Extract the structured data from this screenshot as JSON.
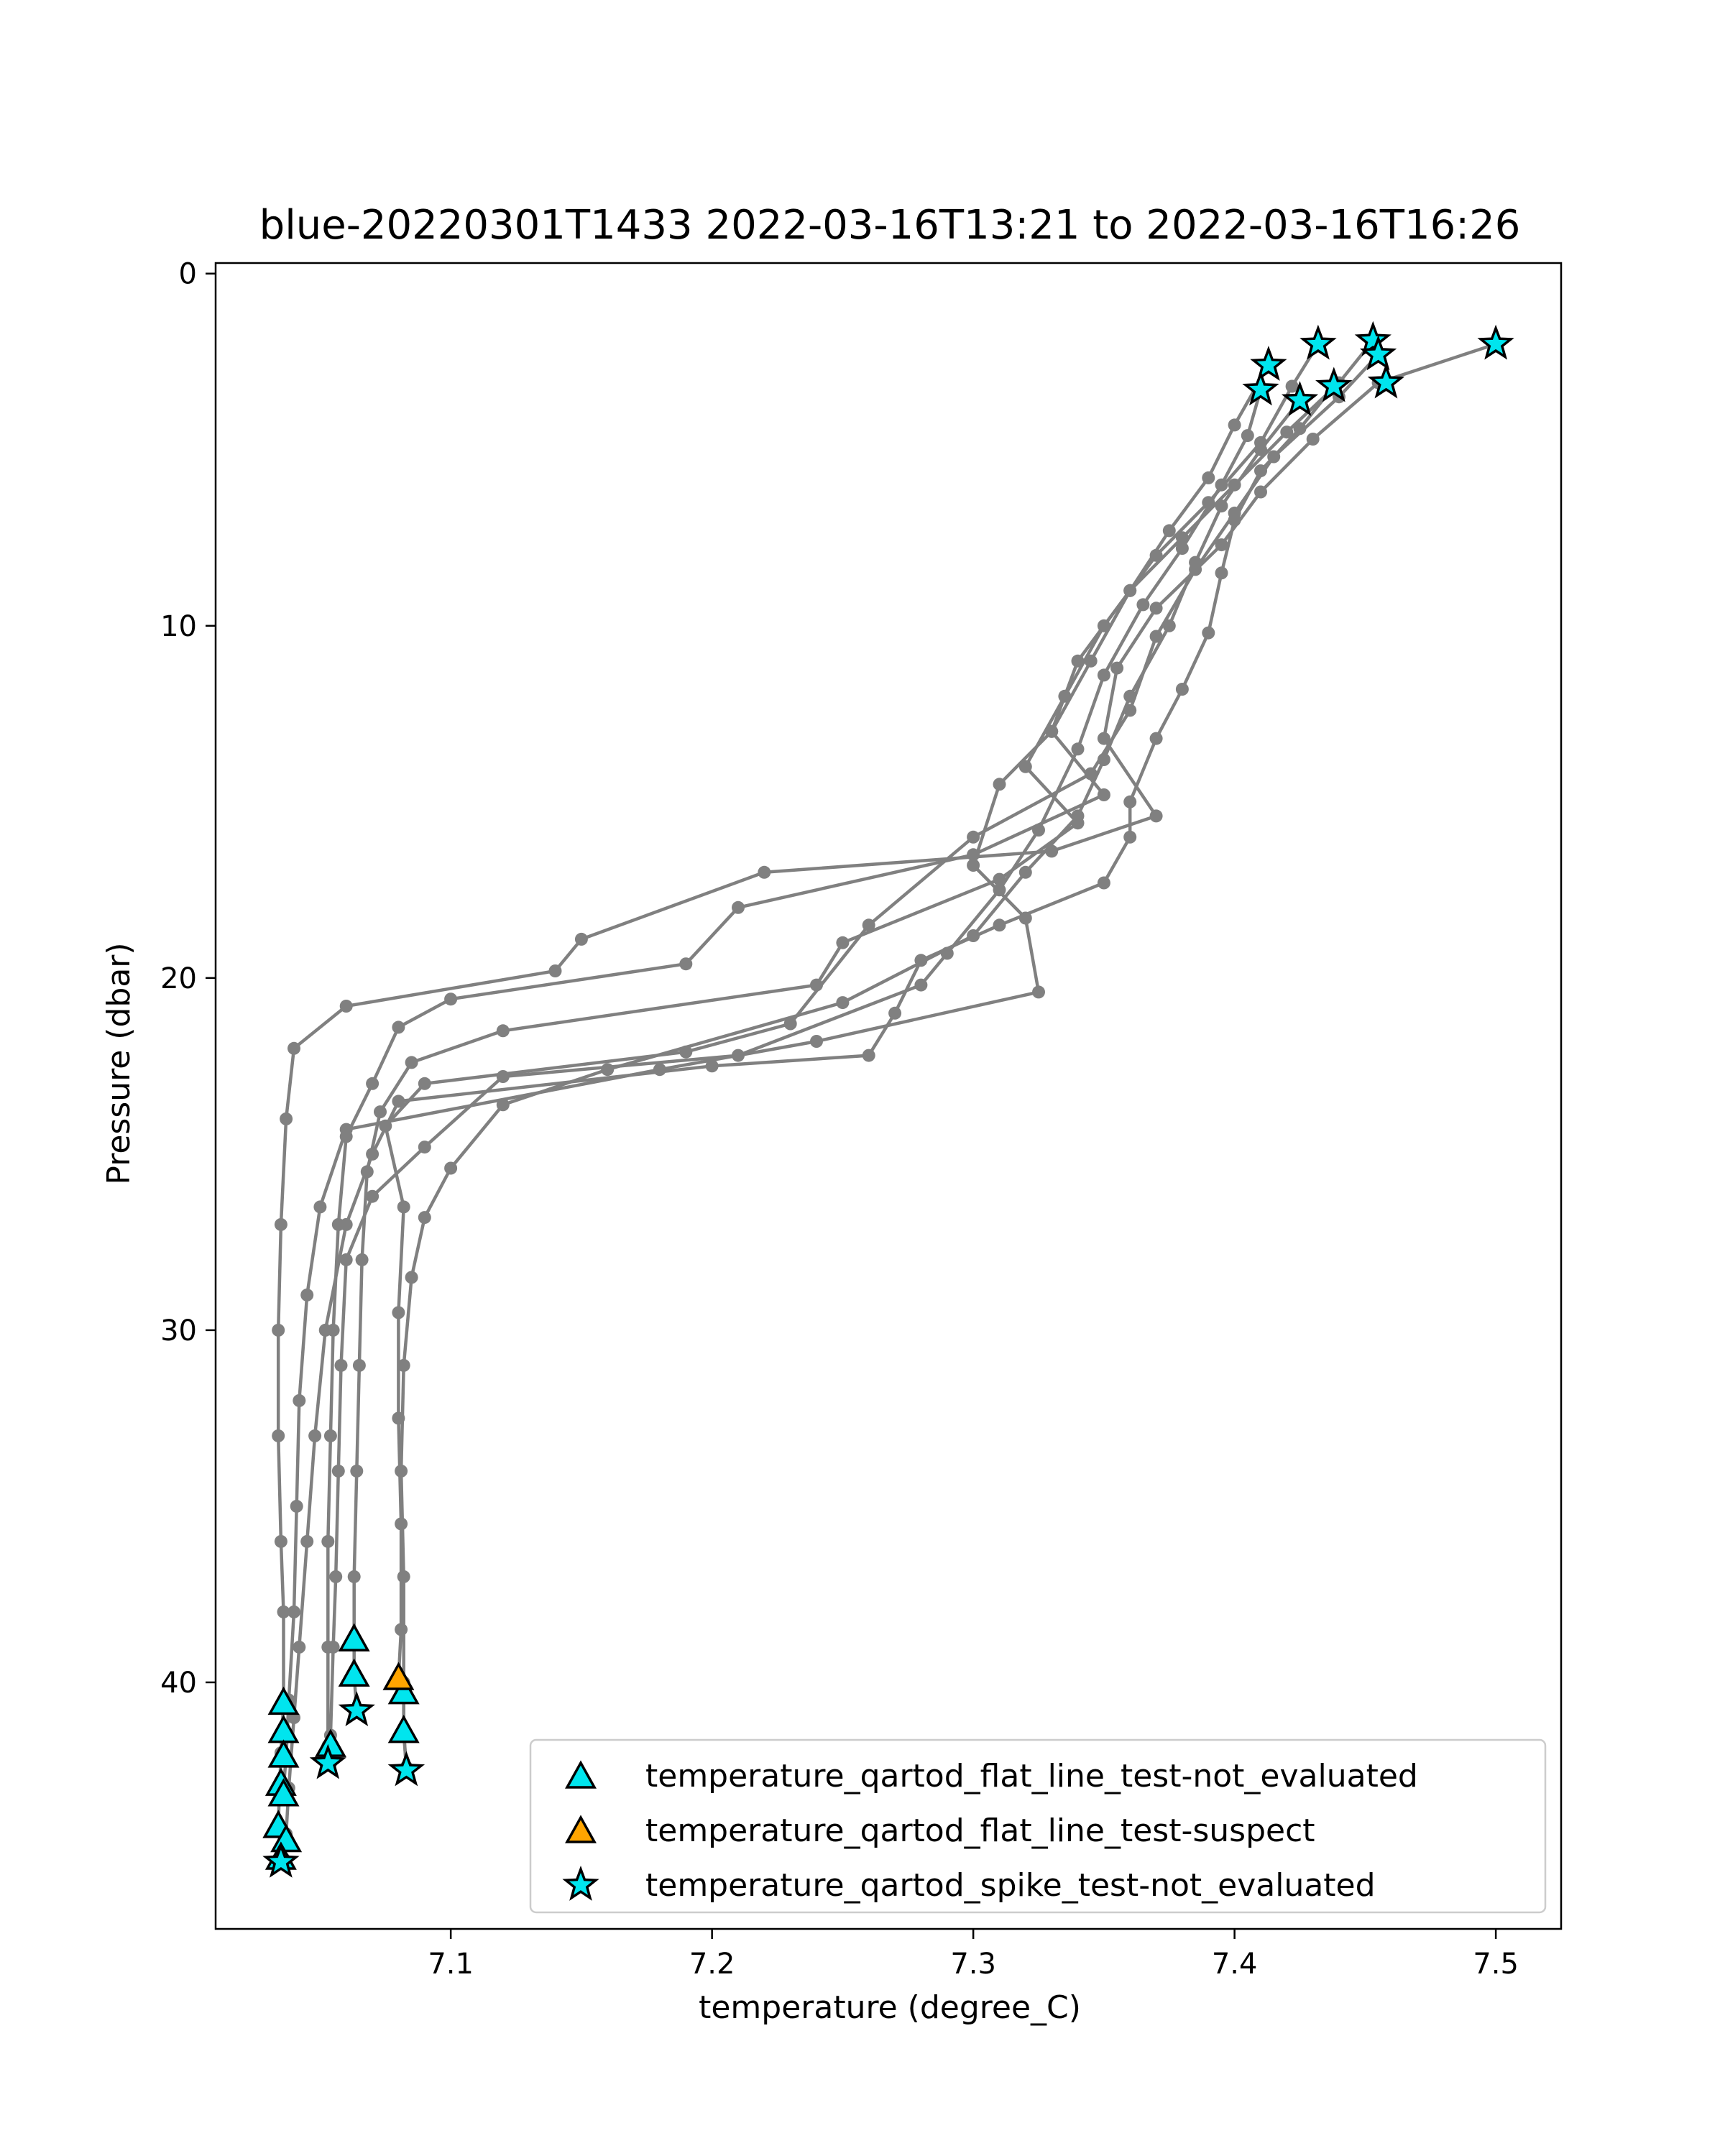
{
  "chart_data": {
    "type": "line",
    "title": "blue-20220301T1433 2022-03-16T13:21 to 2022-03-16T16:26",
    "xlabel": "temperature (degree_C)",
    "ylabel": "Pressure (dbar)",
    "xlim": [
      7.01,
      7.525
    ],
    "ylim": [
      47,
      -0.3
    ],
    "y_inverted": true,
    "xticks": [
      7.1,
      7.2,
      7.3,
      7.4,
      7.5
    ],
    "yticks": [
      0,
      10,
      20,
      30,
      40
    ],
    "xtick_labels": [
      "7.1",
      "7.2",
      "7.3",
      "7.4",
      "7.5"
    ],
    "ytick_labels": [
      "0",
      "10",
      "20",
      "30",
      "40"
    ],
    "grid": false,
    "legend_position": "lower-right",
    "colors": {
      "profile_line": "#808080",
      "not_evaluated": "#00e5ee",
      "suspect": "#ffa500",
      "marker_edge": "#000000"
    },
    "profile_series": [
      {
        "points": [
          [
            7.5,
            2.0
          ],
          [
            7.455,
            3.1
          ],
          [
            7.43,
            4.7
          ],
          [
            7.41,
            6.2
          ],
          [
            7.395,
            7.7
          ],
          [
            7.37,
            9.5
          ],
          [
            7.355,
            11.2
          ],
          [
            7.35,
            13.2
          ],
          [
            7.37,
            15.4
          ],
          [
            7.33,
            16.4
          ],
          [
            7.22,
            17.0
          ],
          [
            7.15,
            18.9
          ],
          [
            7.14,
            19.8
          ],
          [
            7.06,
            20.8
          ],
          [
            7.04,
            22.0
          ],
          [
            7.037,
            24.0
          ],
          [
            7.035,
            27.0
          ],
          [
            7.034,
            30.0
          ],
          [
            7.034,
            33.0
          ],
          [
            7.035,
            36.0
          ],
          [
            7.036,
            38.0
          ],
          [
            7.036,
            40.6
          ],
          [
            7.035,
            42.0
          ],
          [
            7.034,
            44.0
          ],
          [
            7.035,
            45.0
          ]
        ]
      },
      {
        "points": [
          [
            7.453,
            1.9
          ],
          [
            7.44,
            3.1
          ],
          [
            7.42,
            4.5
          ],
          [
            7.4,
            6.0
          ],
          [
            7.38,
            7.5
          ],
          [
            7.36,
            9.0
          ],
          [
            7.34,
            11.0
          ],
          [
            7.33,
            13.0
          ],
          [
            7.35,
            14.8
          ],
          [
            7.3,
            16.5
          ],
          [
            7.21,
            18.0
          ],
          [
            7.19,
            19.6
          ],
          [
            7.1,
            20.6
          ],
          [
            7.08,
            21.4
          ],
          [
            7.07,
            23.0
          ],
          [
            7.06,
            24.5
          ],
          [
            7.057,
            27.0
          ],
          [
            7.055,
            30.0
          ],
          [
            7.054,
            33.0
          ],
          [
            7.053,
            36.0
          ],
          [
            7.053,
            39.0
          ],
          [
            7.053,
            41.8
          ],
          [
            7.054,
            42.3
          ]
        ]
      },
      {
        "points": [
          [
            7.432,
            2.0
          ],
          [
            7.422,
            3.2
          ],
          [
            7.41,
            4.8
          ],
          [
            7.39,
            6.5
          ],
          [
            7.37,
            8.0
          ],
          [
            7.35,
            10.0
          ],
          [
            7.335,
            12.0
          ],
          [
            7.32,
            14.0
          ],
          [
            7.34,
            15.6
          ],
          [
            7.31,
            17.2
          ],
          [
            7.25,
            19.0
          ],
          [
            7.24,
            20.2
          ],
          [
            7.12,
            21.5
          ],
          [
            7.085,
            22.4
          ],
          [
            7.073,
            23.8
          ],
          [
            7.068,
            25.5
          ],
          [
            7.066,
            28.0
          ],
          [
            7.065,
            31.0
          ],
          [
            7.064,
            34.0
          ],
          [
            7.063,
            37.0
          ],
          [
            7.063,
            38.8
          ],
          [
            7.063,
            39.8
          ],
          [
            7.064,
            40.8
          ]
        ]
      },
      {
        "points": [
          [
            7.455,
            2.3
          ],
          [
            7.44,
            3.5
          ],
          [
            7.415,
            5.2
          ],
          [
            7.4,
            6.8
          ],
          [
            7.385,
            8.4
          ],
          [
            7.37,
            10.3
          ],
          [
            7.36,
            12.4
          ],
          [
            7.345,
            14.2
          ],
          [
            7.3,
            16.0
          ],
          [
            7.26,
            18.5
          ],
          [
            7.23,
            21.3
          ],
          [
            7.19,
            22.1
          ],
          [
            7.09,
            23.0
          ],
          [
            7.075,
            24.2
          ],
          [
            7.082,
            26.5
          ],
          [
            7.08,
            29.5
          ],
          [
            7.08,
            32.5
          ],
          [
            7.081,
            35.5
          ],
          [
            7.081,
            38.5
          ],
          [
            7.08,
            39.9
          ],
          [
            7.082,
            40.3
          ],
          [
            7.082,
            41.4
          ],
          [
            7.083,
            42.4
          ]
        ]
      },
      {
        "points": [
          [
            7.425,
            3.6
          ],
          [
            7.41,
            5.0
          ],
          [
            7.395,
            6.6
          ],
          [
            7.385,
            8.2
          ],
          [
            7.375,
            10.0
          ],
          [
            7.36,
            12.0
          ],
          [
            7.35,
            13.8
          ],
          [
            7.34,
            15.4
          ],
          [
            7.32,
            17.0
          ],
          [
            7.3,
            18.8
          ],
          [
            7.25,
            20.7
          ],
          [
            7.16,
            22.6
          ],
          [
            7.12,
            23.6
          ],
          [
            7.1,
            25.4
          ],
          [
            7.09,
            26.8
          ],
          [
            7.085,
            28.5
          ],
          [
            7.082,
            31.0
          ],
          [
            7.081,
            34.0
          ],
          [
            7.082,
            37.0
          ],
          [
            7.082,
            40.0
          ],
          [
            7.082,
            41.4
          ],
          [
            7.083,
            42.5
          ]
        ]
      },
      {
        "points": [
          [
            7.41,
            3.3
          ],
          [
            7.405,
            4.6
          ],
          [
            7.395,
            6.0
          ],
          [
            7.38,
            7.8
          ],
          [
            7.365,
            9.4
          ],
          [
            7.35,
            11.4
          ],
          [
            7.34,
            13.5
          ],
          [
            7.325,
            15.8
          ],
          [
            7.31,
            17.5
          ],
          [
            7.29,
            19.3
          ],
          [
            7.28,
            20.2
          ],
          [
            7.21,
            22.2
          ],
          [
            7.12,
            22.8
          ],
          [
            7.09,
            24.8
          ],
          [
            7.07,
            26.2
          ],
          [
            7.06,
            28.0
          ],
          [
            7.058,
            31.0
          ],
          [
            7.057,
            34.0
          ],
          [
            7.056,
            37.0
          ],
          [
            7.055,
            39.0
          ],
          [
            7.054,
            41.5
          ],
          [
            7.053,
            42.2
          ]
        ]
      },
      {
        "points": [
          [
            7.413,
            2.6
          ],
          [
            7.4,
            4.3
          ],
          [
            7.39,
            5.8
          ],
          [
            7.375,
            7.3
          ],
          [
            7.36,
            9.0
          ],
          [
            7.345,
            11.0
          ],
          [
            7.33,
            13.0
          ],
          [
            7.31,
            14.5
          ],
          [
            7.3,
            16.8
          ],
          [
            7.32,
            18.3
          ],
          [
            7.325,
            20.4
          ],
          [
            7.24,
            21.8
          ],
          [
            7.18,
            22.6
          ],
          [
            7.06,
            24.3
          ],
          [
            7.05,
            26.5
          ],
          [
            7.045,
            29.0
          ],
          [
            7.042,
            32.0
          ],
          [
            7.041,
            35.0
          ],
          [
            7.04,
            38.0
          ],
          [
            7.038,
            40.5
          ],
          [
            7.037,
            42.1
          ],
          [
            7.036,
            43.0
          ]
        ]
      },
      {
        "points": [
          [
            7.438,
            3.2
          ],
          [
            7.425,
            4.4
          ],
          [
            7.41,
            5.6
          ],
          [
            7.4,
            7.0
          ],
          [
            7.395,
            8.5
          ],
          [
            7.39,
            10.2
          ],
          [
            7.38,
            11.8
          ],
          [
            7.37,
            13.2
          ],
          [
            7.36,
            15.0
          ],
          [
            7.36,
            16.0
          ],
          [
            7.35,
            17.3
          ],
          [
            7.31,
            18.5
          ],
          [
            7.28,
            19.5
          ],
          [
            7.27,
            21.0
          ],
          [
            7.26,
            22.2
          ],
          [
            7.2,
            22.5
          ],
          [
            7.08,
            23.5
          ],
          [
            7.07,
            25.0
          ],
          [
            7.06,
            27.0
          ],
          [
            7.052,
            30.0
          ],
          [
            7.048,
            33.0
          ],
          [
            7.045,
            36.0
          ],
          [
            7.042,
            39.0
          ],
          [
            7.04,
            41.0
          ],
          [
            7.038,
            43.0
          ],
          [
            7.037,
            44.3
          ],
          [
            7.036,
            45.0
          ]
        ]
      }
    ],
    "markers": [
      {
        "label": "temperature_qartod_flat_line_test-not_evaluated",
        "marker": "triangle",
        "color": "#00e5ee",
        "points": [
          [
            7.036,
            40.6
          ],
          [
            7.036,
            41.4
          ],
          [
            7.036,
            42.1
          ],
          [
            7.035,
            42.9
          ],
          [
            7.036,
            43.2
          ],
          [
            7.034,
            44.1
          ],
          [
            7.037,
            44.5
          ],
          [
            7.035,
            45.0
          ],
          [
            7.054,
            41.8
          ],
          [
            7.063,
            38.8
          ],
          [
            7.063,
            39.8
          ],
          [
            7.082,
            40.3
          ],
          [
            7.082,
            41.4
          ]
        ]
      },
      {
        "label": "temperature_qartod_flat_line_test-suspect",
        "marker": "triangle",
        "color": "#ffa500",
        "points": [
          [
            7.08,
            39.9
          ]
        ]
      },
      {
        "label": "temperature_qartod_spike_test-not_evaluated",
        "marker": "star",
        "color": "#00e5ee",
        "points": [
          [
            7.5,
            2.0
          ],
          [
            7.453,
            1.9
          ],
          [
            7.455,
            2.3
          ],
          [
            7.432,
            2.0
          ],
          [
            7.413,
            2.6
          ],
          [
            7.41,
            3.3
          ],
          [
            7.425,
            3.6
          ],
          [
            7.438,
            3.2
          ],
          [
            7.458,
            3.1
          ],
          [
            7.064,
            40.8
          ],
          [
            7.053,
            42.3
          ],
          [
            7.083,
            42.5
          ],
          [
            7.035,
            45.1
          ]
        ]
      }
    ]
  }
}
